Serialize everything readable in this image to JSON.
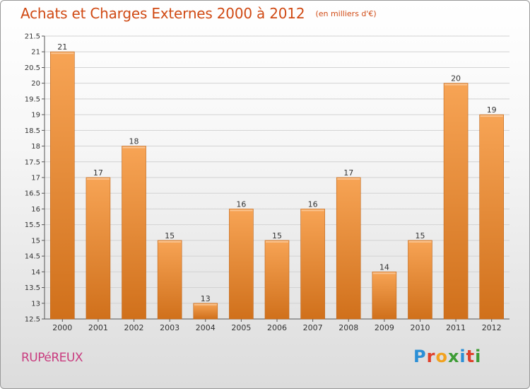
{
  "title": "Achats et Charges Externes 2000 à 2012",
  "subtitle": "(en milliers d'€)",
  "commune": "RUPéREUX",
  "logo": {
    "text": "Proxiti",
    "letters": [
      {
        "ch": "P",
        "color": "#2b8fd6"
      },
      {
        "ch": "r",
        "color": "#e0402b"
      },
      {
        "ch": "o",
        "color": "#f2a21f"
      },
      {
        "ch": "x",
        "color": "#3d9c35"
      },
      {
        "ch": "i",
        "color": "#2b8fd6"
      },
      {
        "ch": "t",
        "color": "#e0402b"
      },
      {
        "ch": "i",
        "color": "#3d9c35"
      }
    ]
  },
  "colors": {
    "bar_light": "#f7a455",
    "bar_dark": "#d0701b",
    "title": "#d04a14",
    "commune": "#c93c7f"
  },
  "chart_data": {
    "type": "bar",
    "categories": [
      "2000",
      "2001",
      "2002",
      "2003",
      "2004",
      "2005",
      "2006",
      "2007",
      "2008",
      "2009",
      "2010",
      "2011",
      "2012"
    ],
    "values": [
      21,
      17,
      18,
      15,
      13,
      16,
      15,
      16,
      17,
      14,
      15,
      20,
      19
    ],
    "data_labels": [
      "21",
      "17",
      "18",
      "15",
      "13",
      "16",
      "15",
      "16",
      "17",
      "14",
      "15",
      "20",
      "19"
    ],
    "ylim": [
      12.5,
      21.5
    ],
    "yticks": [
      "12.5",
      "13",
      "13.5",
      "14",
      "14.5",
      "15",
      "15.5",
      "16",
      "16.5",
      "17",
      "17.5",
      "18",
      "18.5",
      "19",
      "19.5",
      "20",
      "20.5",
      "21",
      "21.5"
    ],
    "grid": true,
    "title": "Achats et Charges Externes 2000 à 2012",
    "xlabel": "",
    "ylabel": ""
  }
}
